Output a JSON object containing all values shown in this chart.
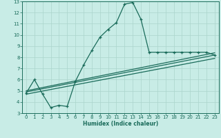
{
  "xlabel": "Humidex (Indice chaleur)",
  "bg_color": "#c8ece6",
  "line_color": "#1a6b5a",
  "grid_color": "#aad4cc",
  "xlim": [
    -0.5,
    23.5
  ],
  "ylim": [
    3,
    13
  ],
  "xticks": [
    0,
    1,
    2,
    3,
    4,
    5,
    6,
    7,
    8,
    9,
    10,
    11,
    12,
    13,
    14,
    15,
    16,
    17,
    18,
    19,
    20,
    21,
    22,
    23
  ],
  "yticks": [
    3,
    4,
    5,
    6,
    7,
    8,
    9,
    10,
    11,
    12,
    13
  ],
  "line1_x": [
    0,
    1,
    2,
    3,
    4,
    5,
    6,
    7,
    8,
    9,
    10,
    11,
    12,
    13,
    14,
    15,
    16,
    17,
    18,
    19,
    20,
    21,
    22,
    23
  ],
  "line1_y": [
    4.8,
    6.0,
    4.7,
    3.5,
    3.7,
    3.6,
    5.85,
    7.3,
    8.6,
    9.8,
    10.5,
    11.1,
    12.75,
    12.9,
    11.4,
    8.45,
    8.45,
    8.45,
    8.45,
    8.45,
    8.45,
    8.45,
    8.45,
    8.2
  ],
  "line2_x": [
    0,
    23
  ],
  "line2_y": [
    5.0,
    8.4
  ],
  "line3_x": [
    0,
    23
  ],
  "line3_y": [
    4.9,
    8.2
  ],
  "line4_x": [
    0,
    23
  ],
  "line4_y": [
    4.7,
    7.9
  ]
}
